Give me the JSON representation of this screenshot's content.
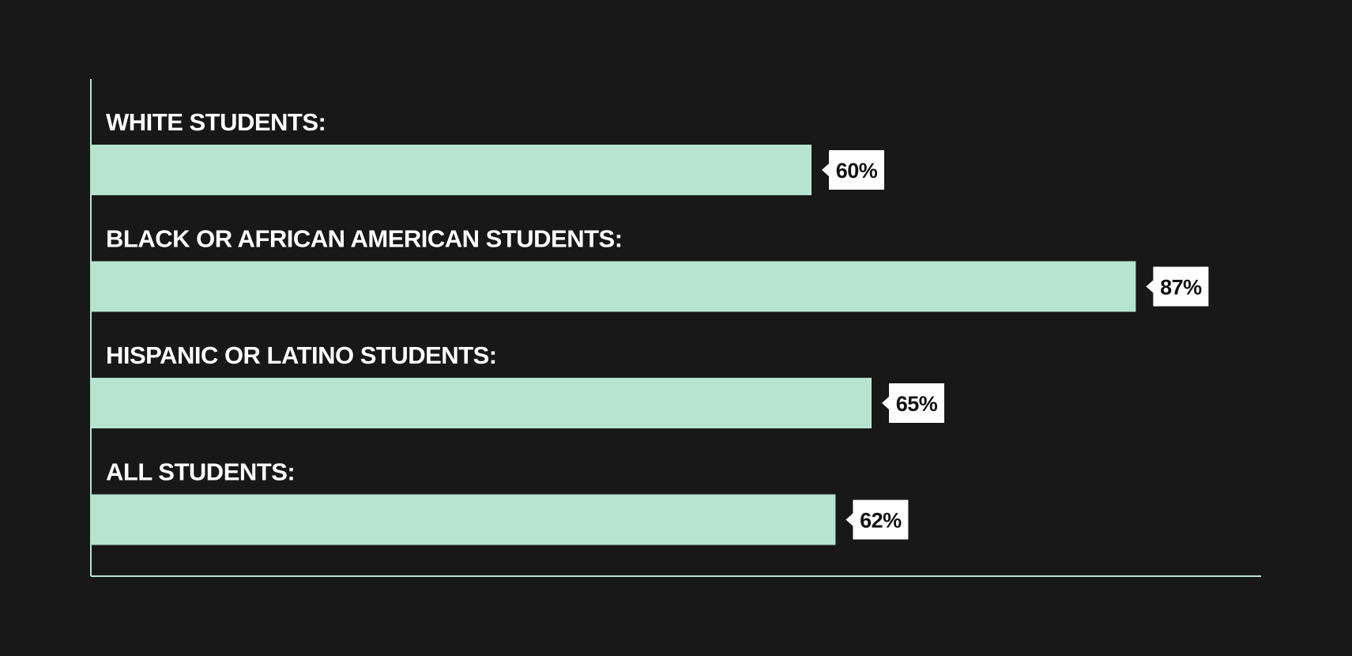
{
  "chart_data": {
    "type": "bar",
    "orientation": "horizontal",
    "categories": [
      "WHITE STUDENTS:",
      "BLACK OR AFRICAN AMERICAN STUDENTS:",
      "HISPANIC OR LATINO STUDENTS:",
      "ALL STUDENTS:"
    ],
    "values": [
      60,
      87,
      65,
      62
    ],
    "value_labels": [
      "60%",
      "87%",
      "65%",
      "62%"
    ],
    "unit": "%",
    "xlim": [
      0,
      100
    ],
    "grid": false,
    "legend": "none",
    "title": "",
    "xlabel": "",
    "ylabel": ""
  },
  "colors": {
    "background": "#181818",
    "bar": "#b6e4d0",
    "axis": "#b6e4d0",
    "category_text": "#ffffff",
    "value_box": "#ffffff",
    "value_text": "#111111"
  }
}
